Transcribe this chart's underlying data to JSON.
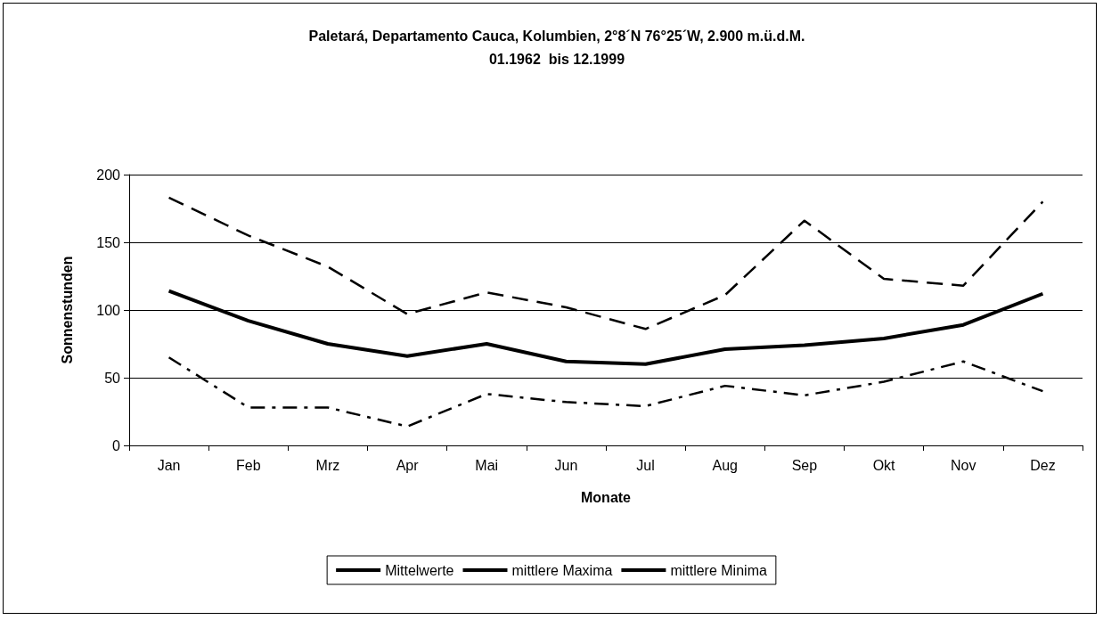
{
  "chart_data": {
    "type": "line",
    "title": "Paletará, Departamento Cauca, Kolumbien, 2°8´N 76°25´W, 2.900 m.ü.d.M.\n01.1962  bis 12.1999",
    "xlabel": "Monate",
    "ylabel": "Sonnenstunden",
    "categories": [
      "Jan",
      "Feb",
      "Mrz",
      "Apr",
      "Mai",
      "Jun",
      "Jul",
      "Aug",
      "Sep",
      "Okt",
      "Nov",
      "Dez"
    ],
    "series": [
      {
        "name": "Mittelwerte",
        "color": "#000000",
        "line_style": "solid",
        "values": [
          114,
          92,
          75,
          66,
          75,
          62,
          60,
          71,
          74,
          79,
          89,
          112
        ]
      },
      {
        "name": "mittlere Maxima",
        "color": "#000000",
        "line_style": "dashed",
        "values": [
          183,
          155,
          132,
          97,
          113,
          102,
          86,
          111,
          166,
          123,
          118,
          180
        ]
      },
      {
        "name": "mittlere Minima",
        "color": "#000000",
        "line_style": "dashdot",
        "values": [
          65,
          28,
          28,
          14,
          38,
          32,
          29,
          44,
          37,
          47,
          62,
          40
        ]
      }
    ],
    "ylim": [
      0,
      200
    ],
    "yticks": [
      0,
      50,
      100,
      150,
      200
    ],
    "grid": "y",
    "legend": "bottom",
    "marker": "none"
  }
}
